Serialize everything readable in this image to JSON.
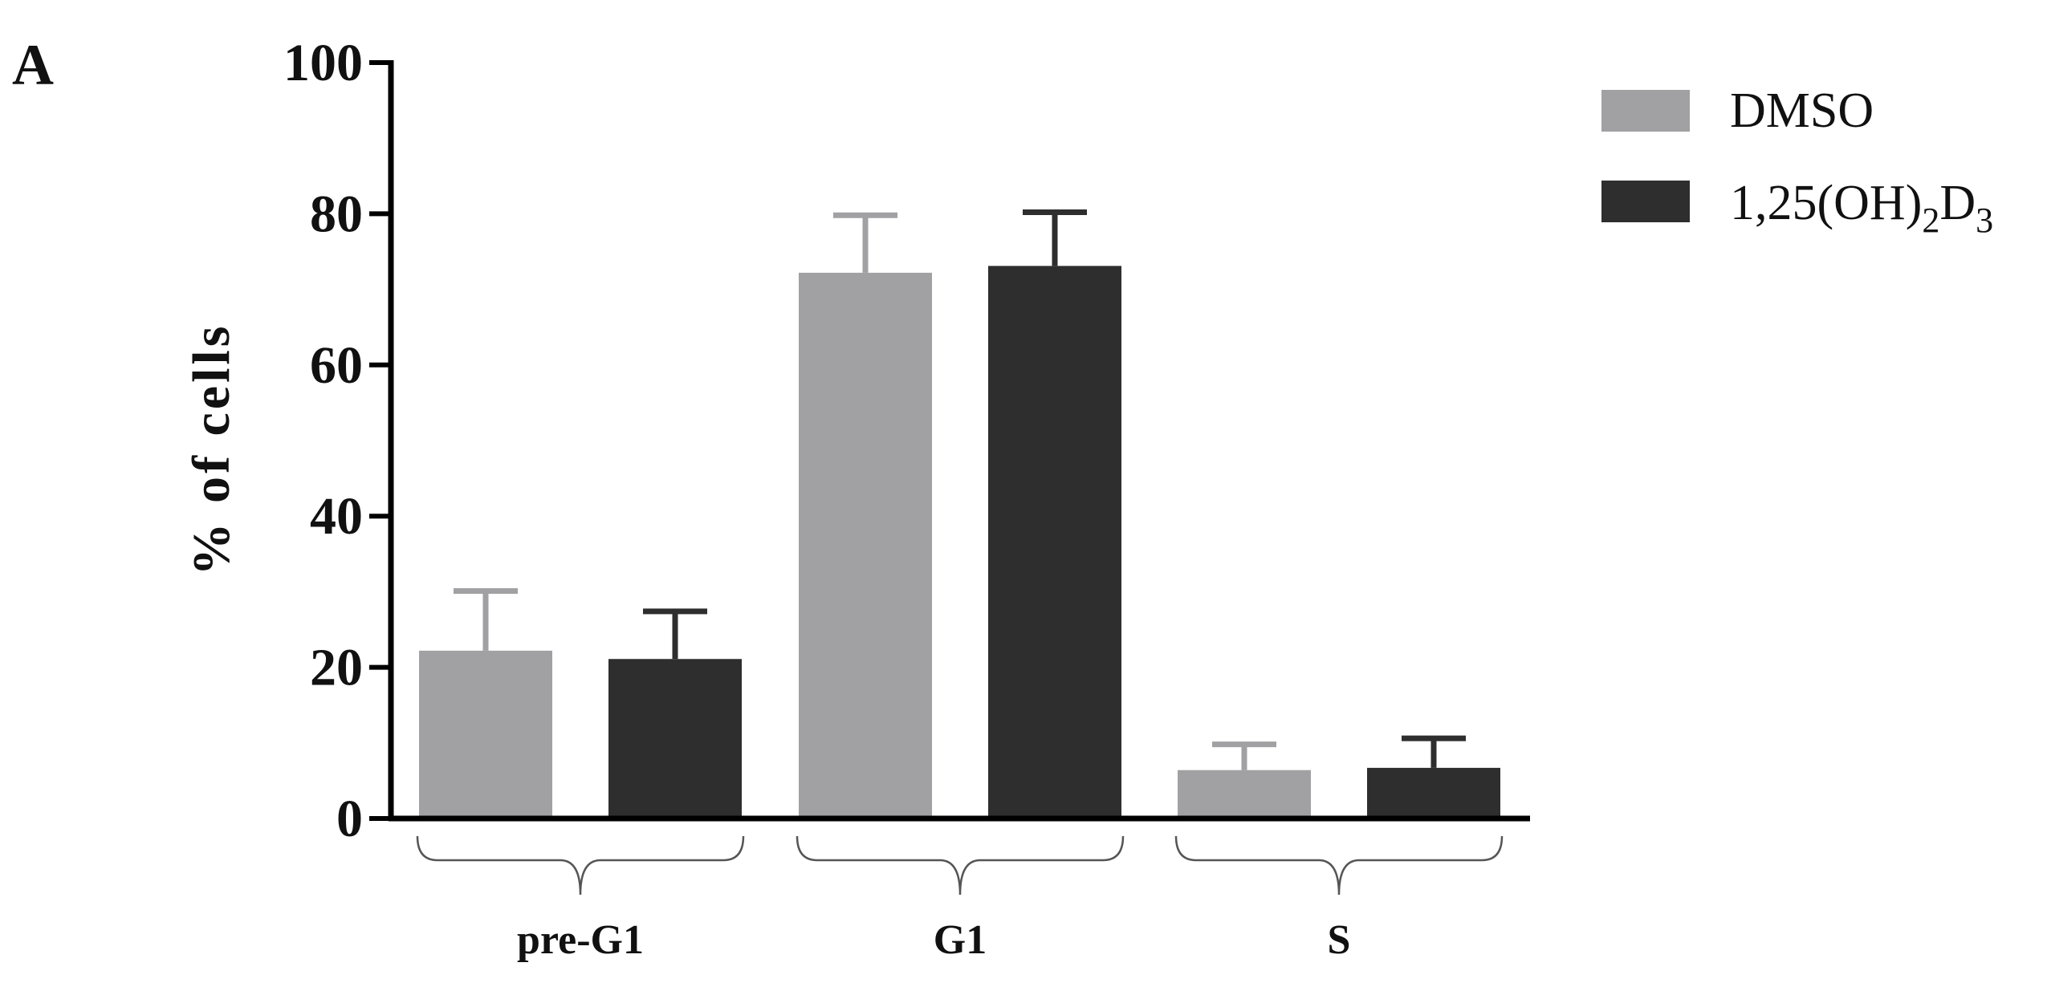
{
  "panel_label": "A",
  "chart_data": {
    "type": "bar",
    "title": "",
    "xlabel": "",
    "ylabel": "% of cells",
    "ylim": [
      0,
      100
    ],
    "yticks": [
      0,
      20,
      40,
      60,
      80,
      100
    ],
    "categories": [
      "pre-G1",
      "G1",
      "S"
    ],
    "series": [
      {
        "name": "DMSO",
        "color": "#a1a1a3",
        "values": [
          22.2,
          72.2,
          6.4
        ],
        "error": [
          7.9,
          7.6,
          3.4
        ]
      },
      {
        "name": "1,25(OH)2D3",
        "color": "#2e2e2e",
        "values": [
          21.1,
          73.1,
          6.7
        ],
        "error": [
          6.3,
          7.1,
          3.9
        ]
      }
    ],
    "grid": false,
    "legend_position": "top-right"
  },
  "legend": {
    "dmso": "DMSO",
    "vitd_main": "1,25(OH)",
    "vitd_sub1": "2",
    "vitd_mid": "D",
    "vitd_sub2": "3"
  }
}
